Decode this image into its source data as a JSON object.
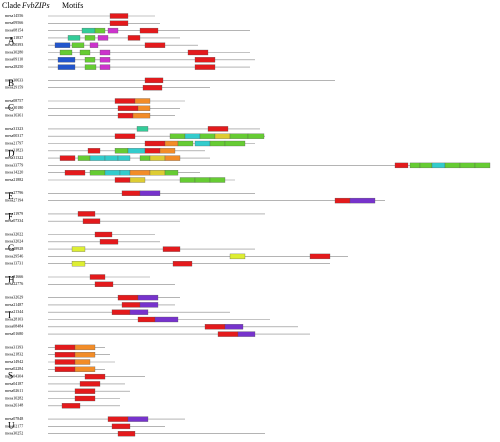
{
  "header": {
    "clade": "Clade",
    "genes": "FvbZIPs",
    "motifs": "Motifs"
  },
  "clades": [
    {
      "label": "A",
      "genes": [
        {
          "name": "mesa14556",
          "length": 107,
          "motifs": [
            [
              62,
              80,
              "#e31a1c"
            ]
          ]
        },
        {
          "name": "mesa09566",
          "length": 112,
          "motifs": [
            [
              62,
              80,
              "#e31a1c"
            ]
          ]
        },
        {
          "name": "mesa08154",
          "length": 202,
          "motifs": [
            [
              34,
              47,
              "#33cc99"
            ],
            [
              47,
              57,
              "#66cc33"
            ],
            [
              60,
              70,
              "#cc33cc"
            ],
            [
              92,
              110,
              "#e31a1c"
            ]
          ]
        },
        {
          "name": "mesa11837",
          "length": 132,
          "motifs": [
            [
              20,
              32,
              "#33cc99"
            ],
            [
              37,
              47,
              "#66cc33"
            ],
            [
              50,
              60,
              "#cc33cc"
            ],
            [
              80,
              92,
              "#e31a1c"
            ]
          ]
        },
        {
          "name": "mesa00393",
          "length": 150,
          "motifs": [
            [
              7,
              22,
              "#2255cc"
            ],
            [
              24,
              36,
              "#66cc33"
            ],
            [
              42,
              50,
              "#cc33cc"
            ],
            [
              97,
              117,
              "#e31a1c"
            ]
          ]
        },
        {
          "name": "mesa30280",
          "length": 202,
          "motifs": [
            [
              12,
              24,
              "#66cc33"
            ],
            [
              32,
              42,
              "#66cc33"
            ],
            [
              52,
              62,
              "#cc33cc"
            ],
            [
              140,
              160,
              "#e31a1c"
            ]
          ]
        },
        {
          "name": "mesa09110",
          "length": 207,
          "motifs": [
            [
              10,
              27,
              "#2255cc"
            ],
            [
              37,
              47,
              "#66cc33"
            ],
            [
              52,
              62,
              "#cc33cc"
            ],
            [
              147,
              167,
              "#e31a1c"
            ]
          ]
        },
        {
          "name": "mesa28250",
          "length": 202,
          "motifs": [
            [
              10,
              27,
              "#2255cc"
            ],
            [
              37,
              48,
              "#66cc33"
            ],
            [
              52,
              62,
              "#cc33cc"
            ],
            [
              147,
              167,
              "#e31a1c"
            ]
          ]
        }
      ]
    },
    {
      "label": "B",
      "genes": [
        {
          "name": "mesa30633",
          "length": 287,
          "motifs": [
            [
              97,
              115,
              "#e31a1c"
            ]
          ]
        },
        {
          "name": "mesa29159",
          "length": 162,
          "motifs": [
            [
              95,
              114,
              "#e31a1c"
            ]
          ]
        }
      ]
    },
    {
      "label": "C",
      "genes": [
        {
          "name": "mesa08757",
          "length": 137,
          "motifs": [
            [
              67,
              87,
              "#e31a1c"
            ],
            [
              87,
              102,
              "#f28c28"
            ]
          ]
        },
        {
          "name": "mesa30180",
          "length": 132,
          "motifs": [
            [
              70,
              90,
              "#e31a1c"
            ],
            [
              90,
              102,
              "#f28c28"
            ]
          ]
        },
        {
          "name": "mesa16361",
          "length": 127,
          "motifs": [
            [
              70,
              85,
              "#e31a1c"
            ],
            [
              85,
              102,
              "#f28c28"
            ]
          ]
        }
      ]
    },
    {
      "label": "D",
      "genes": [
        {
          "name": "mesa31323",
          "length": 212,
          "motifs": [
            [
              89,
              100,
              "#33cc99"
            ],
            [
              160,
              180,
              "#e31a1c"
            ]
          ]
        },
        {
          "name": "mesa00317",
          "length": 217,
          "motifs": [
            [
              67,
              87,
              "#e31a1c"
            ],
            [
              122,
              137,
              "#66cc33"
            ],
            [
              137,
              152,
              "#33cccc"
            ],
            [
              152,
              167,
              "#66cc33"
            ],
            [
              167,
              182,
              "#ddcc33"
            ],
            [
              182,
              200,
              "#66cc33"
            ],
            [
              200,
              216,
              "#66cc33"
            ]
          ]
        },
        {
          "name": "mesa21797",
          "length": 207,
          "motifs": [
            [
              97,
              117,
              "#e31a1c"
            ],
            [
              117,
              130,
              "#f28c28"
            ],
            [
              130,
              145,
              "#66cc33"
            ],
            [
              147,
              162,
              "#33cccc"
            ],
            [
              162,
              177,
              "#66cc33"
            ],
            [
              177,
              197,
              "#66cc33"
            ]
          ]
        },
        {
          "name": "mesa31823",
          "length": 157,
          "motifs": [
            [
              40,
              52,
              "#e31a1c"
            ],
            [
              67,
              80,
              "#66cc33"
            ],
            [
              80,
              97,
              "#33cccc"
            ],
            [
              97,
              112,
              "#e31a1c"
            ],
            [
              112,
              127,
              "#f28c28"
            ]
          ]
        },
        {
          "name": "mesa31322",
          "length": 162,
          "motifs": [
            [
              12,
              27,
              "#e31a1c"
            ],
            [
              30,
              42,
              "#66cc33"
            ],
            [
              42,
              57,
              "#33cccc"
            ],
            [
              57,
              70,
              "#33cccc"
            ],
            [
              70,
              82,
              "#33cccc"
            ],
            [
              92,
              102,
              "#66cc33"
            ],
            [
              102,
              117,
              "#ddcc33"
            ],
            [
              117,
              132,
              "#f28c28"
            ]
          ]
        },
        {
          "name": "mesa33779",
          "length": 442,
          "motifs": [
            [
              347,
              360,
              "#e31a1c"
            ],
            [
              362,
              372,
              "#66cc33"
            ],
            [
              372,
              384,
              "#66cc33"
            ],
            [
              384,
              397,
              "#33cccc"
            ],
            [
              397,
              412,
              "#66cc33"
            ],
            [
              412,
              427,
              "#66cc33"
            ],
            [
              427,
              442,
              "#66cc33"
            ]
          ]
        },
        {
          "name": "mesa14220",
          "length": 152,
          "motifs": [
            [
              17,
              37,
              "#e31a1c"
            ],
            [
              42,
              57,
              "#66cc33"
            ],
            [
              57,
              72,
              "#33cccc"
            ],
            [
              72,
              82,
              "#33cccc"
            ],
            [
              82,
              102,
              "#f28c28"
            ],
            [
              102,
              117,
              "#ddcc33"
            ],
            [
              117,
              130,
              "#66cc33"
            ]
          ]
        },
        {
          "name": "mesa21882",
          "length": 187,
          "motifs": [
            [
              67,
              82,
              "#e31a1c"
            ],
            [
              82,
              97,
              "#ddcc33"
            ],
            [
              132,
              147,
              "#66cc33"
            ],
            [
              147,
              162,
              "#66cc33"
            ],
            [
              162,
              177,
              "#66cc33"
            ]
          ]
        }
      ]
    },
    {
      "label": "E",
      "genes": [
        {
          "name": "mesa27796",
          "length": 207,
          "motifs": [
            [
              74,
              92,
              "#e31a1c"
            ],
            [
              92,
              112,
              "#7733cc"
            ]
          ]
        },
        {
          "name": "mesa27194",
          "length": 337,
          "motifs": [
            [
              287,
              302,
              "#e31a1c"
            ],
            [
              302,
              327,
              "#7733cc"
            ]
          ]
        }
      ]
    },
    {
      "label": "F",
      "genes": [
        {
          "name": "mesa11979",
          "length": 217,
          "motifs": [
            [
              30,
              47,
              "#e31a1c"
            ]
          ]
        },
        {
          "name": "mesa07334",
          "length": 132,
          "motifs": [
            [
              35,
              52,
              "#e31a1c"
            ]
          ]
        }
      ]
    },
    {
      "label": "G",
      "genes": [
        {
          "name": "mesa32022",
          "length": 107,
          "motifs": [
            [
              47,
              64,
              "#e31a1c"
            ]
          ]
        },
        {
          "name": "mesa32024",
          "length": 112,
          "motifs": [
            [
              52,
              70,
              "#e31a1c"
            ]
          ]
        },
        {
          "name": "mesa18928",
          "length": 207,
          "motifs": [
            [
              24,
              37,
              "#ddee33"
            ],
            [
              115,
              132,
              "#e31a1c"
            ]
          ]
        },
        {
          "name": "mesa29546",
          "length": 300,
          "motifs": [
            [
              182,
              197,
              "#ddee33"
            ],
            [
              262,
              282,
              "#e31a1c"
            ]
          ]
        },
        {
          "name": "mesa13731",
          "length": 282,
          "motifs": [
            [
              24,
              37,
              "#ddee33"
            ],
            [
              125,
              144,
              "#e31a1c"
            ]
          ]
        }
      ]
    },
    {
      "label": "H",
      "genes": [
        {
          "name": "mesa31666",
          "length": 102,
          "motifs": [
            [
              42,
              57,
              "#e31a1c"
            ]
          ]
        },
        {
          "name": "mesa22776",
          "length": 127,
          "motifs": [
            [
              47,
              65,
              "#e31a1c"
            ]
          ]
        }
      ]
    },
    {
      "label": "I",
      "genes": [
        {
          "name": "mesa32629",
          "length": 132,
          "motifs": [
            [
              70,
              90,
              "#e31a1c"
            ],
            [
              90,
              110,
              "#7733cc"
            ]
          ]
        },
        {
          "name": "mesa21487",
          "length": 127,
          "motifs": [
            [
              74,
              92,
              "#e31a1c"
            ],
            [
              92,
              110,
              "#7733cc"
            ]
          ]
        },
        {
          "name": "mesa21344",
          "length": 182,
          "motifs": [
            [
              64,
              82,
              "#e31a1c"
            ],
            [
              82,
              100,
              "#7733cc"
            ]
          ]
        },
        {
          "name": "mesa28103",
          "length": 222,
          "motifs": [
            [
              90,
              107,
              "#e31a1c"
            ],
            [
              107,
              130,
              "#7733cc"
            ]
          ]
        },
        {
          "name": "mesa08484",
          "length": 250,
          "motifs": [
            [
              157,
              177,
              "#e31a1c"
            ],
            [
              177,
              195,
              "#7733cc"
            ]
          ]
        },
        {
          "name": "mesa01680",
          "length": 262,
          "motifs": [
            [
              170,
              190,
              "#e31a1c"
            ],
            [
              190,
              207,
              "#7733cc"
            ]
          ]
        }
      ]
    },
    {
      "label": "S",
      "genes": [
        {
          "name": "mesa31393",
          "length": 57,
          "motifs": [
            [
              7,
              27,
              "#e31a1c"
            ],
            [
              27,
              47,
              "#f28c28"
            ]
          ]
        },
        {
          "name": "mesa21832",
          "length": 62,
          "motifs": [
            [
              7,
              27,
              "#e31a1c"
            ],
            [
              27,
              47,
              "#f28c28"
            ]
          ]
        },
        {
          "name": "mesa14942",
          "length": 67,
          "motifs": [
            [
              7,
              27,
              "#e31a1c"
            ],
            [
              27,
              42,
              "#f28c28"
            ]
          ]
        },
        {
          "name": "mesa02284",
          "length": 57,
          "motifs": [
            [
              7,
              27,
              "#e31a1c"
            ],
            [
              27,
              47,
              "#f28c28"
            ]
          ]
        },
        {
          "name": "mesa04304",
          "length": 97,
          "motifs": [
            [
              37,
              57,
              "#e31a1c"
            ]
          ]
        },
        {
          "name": "mesa04187",
          "length": 77,
          "motifs": [
            [
              32,
              52,
              "#e31a1c"
            ]
          ]
        },
        {
          "name": "mesa02611",
          "length": 82,
          "motifs": [
            [
              27,
              47,
              "#e31a1c"
            ]
          ]
        },
        {
          "name": "mesa10282",
          "length": 72,
          "motifs": [
            [
              27,
              47,
              "#e31a1c"
            ]
          ]
        },
        {
          "name": "mesa26148",
          "length": 72,
          "motifs": [
            [
              14,
              32,
              "#e31a1c"
            ]
          ]
        }
      ]
    },
    {
      "label": "U",
      "genes": [
        {
          "name": "mesa07848",
          "length": 137,
          "motifs": [
            [
              60,
              80,
              "#e31a1c"
            ],
            [
              80,
              100,
              "#7733cc"
            ]
          ]
        },
        {
          "name": "mesa02177",
          "length": 117,
          "motifs": [
            [
              64,
              82,
              "#e31a1c"
            ]
          ]
        },
        {
          "name": "mesa30252",
          "length": 217,
          "motifs": [
            [
              70,
              87,
              "#e31a1c"
            ]
          ]
        }
      ]
    }
  ]
}
